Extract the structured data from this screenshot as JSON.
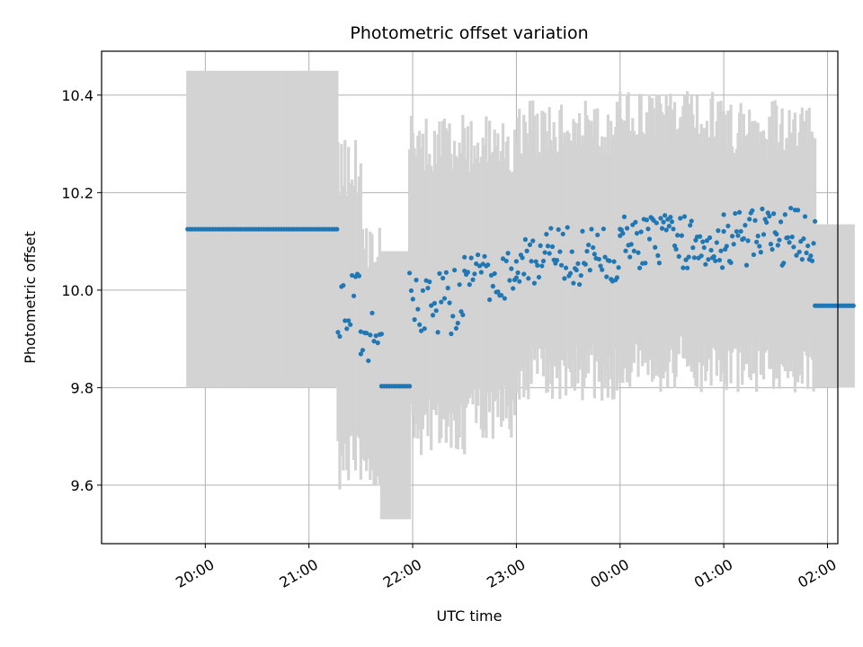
{
  "chart_data": {
    "type": "scatter",
    "title": "Photometric offset variation",
    "xlabel": "UTC time",
    "ylabel": "Photometric offset",
    "grid": true,
    "legend": "none",
    "x_unit": "hours UTC (values past 24 are after midnight)",
    "xlim": [
      19.0,
      26.1
    ],
    "ylim": [
      9.48,
      10.49
    ],
    "x_ticks": [
      {
        "value": 20,
        "label": "20:00"
      },
      {
        "value": 21,
        "label": "21:00"
      },
      {
        "value": 22,
        "label": "22:00"
      },
      {
        "value": 23,
        "label": "23:00"
      },
      {
        "value": 24,
        "label": "00:00"
      },
      {
        "value": 25,
        "label": "01:00"
      },
      {
        "value": 26,
        "label": "02:00"
      }
    ],
    "y_ticks": [
      {
        "value": 9.6,
        "label": "9.6"
      },
      {
        "value": 9.8,
        "label": "9.8"
      },
      {
        "value": 10.0,
        "label": "10.0"
      },
      {
        "value": 10.2,
        "label": "10.2"
      },
      {
        "value": 10.4,
        "label": "10.4"
      }
    ],
    "colors": {
      "points": "#1f77b4",
      "errorbars": "#d3d3d3",
      "grid": "#b0b0b0"
    },
    "segments": [
      {
        "x_start": 19.83,
        "x_end": 21.27,
        "y": 10.125,
        "err_low": 9.8,
        "err_high": 10.45,
        "n": 60,
        "jitter": 0.0
      },
      {
        "x_start": 21.28,
        "x_end": 21.5,
        "y": 9.97,
        "err_low": 9.65,
        "err_high": 10.25,
        "n": 14,
        "jitter": 0.07
      },
      {
        "x_start": 21.5,
        "x_end": 21.7,
        "y": 9.9,
        "err_low": 9.65,
        "err_high": 10.1,
        "n": 12,
        "jitter": 0.06
      },
      {
        "x_start": 21.7,
        "x_end": 21.97,
        "y": 9.803,
        "err_low": 9.53,
        "err_high": 10.08,
        "n": 12,
        "jitter": 0.0
      },
      {
        "x_start": 21.97,
        "x_end": 22.5,
        "y": 9.98,
        "err_low": 9.72,
        "err_high": 10.3,
        "n": 34,
        "jitter": 0.07
      },
      {
        "x_start": 22.5,
        "x_end": 23.0,
        "y": 10.03,
        "err_low": 9.75,
        "err_high": 10.3,
        "n": 32,
        "jitter": 0.05
      },
      {
        "x_start": 23.0,
        "x_end": 24.0,
        "y": 10.07,
        "err_low": 9.83,
        "err_high": 10.33,
        "n": 70,
        "jitter": 0.06
      },
      {
        "x_start": 24.0,
        "x_end": 25.0,
        "y": 10.1,
        "err_low": 9.85,
        "err_high": 10.35,
        "n": 75,
        "jitter": 0.055
      },
      {
        "x_start": 25.0,
        "x_end": 25.88,
        "y": 10.11,
        "err_low": 9.85,
        "err_high": 10.33,
        "n": 65,
        "jitter": 0.06
      },
      {
        "x_start": 25.88,
        "x_end": 26.25,
        "y": 9.968,
        "err_low": 9.8,
        "err_high": 10.135,
        "n": 18,
        "jitter": 0.0
      }
    ]
  }
}
